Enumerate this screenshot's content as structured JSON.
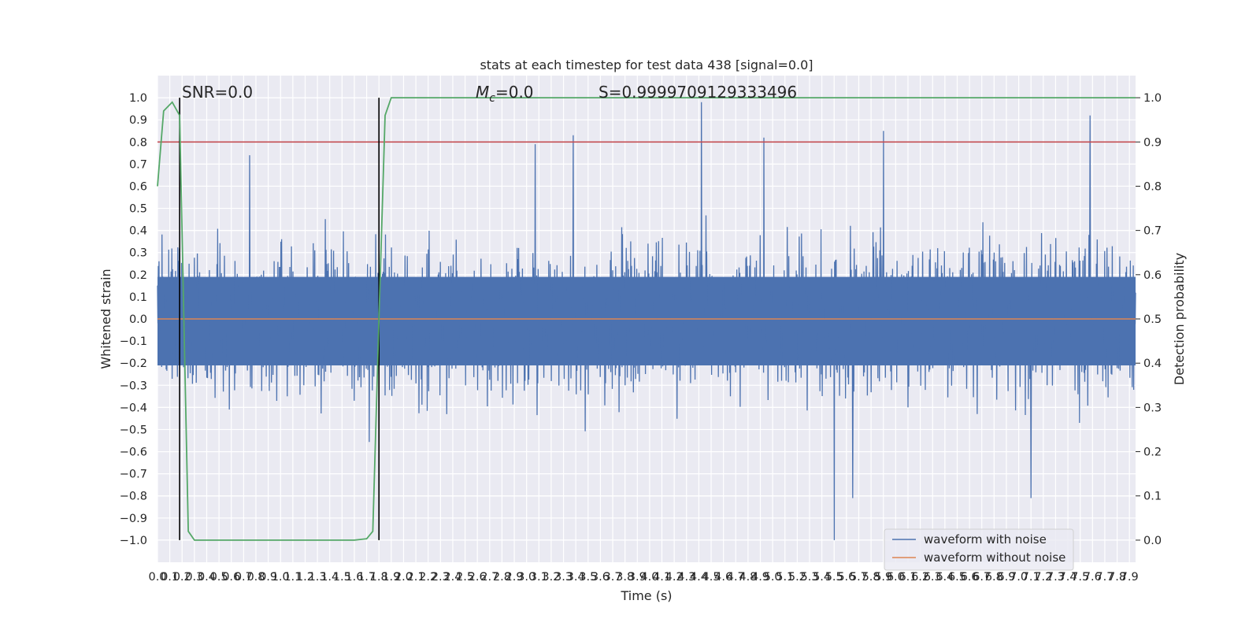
{
  "chart_data": {
    "type": "line",
    "title": "stats at each timestep for test data 438 [signal=0.0]",
    "xlabel": "Time (s)",
    "ylabel": "Whitened strain",
    "y2label": "Detection probability",
    "xlim": [
      0.0,
      7.95
    ],
    "ylim": [
      -1.1,
      1.1
    ],
    "y2lim": [
      -0.05,
      1.05
    ],
    "x_ticks": [
      "0.0",
      "0.1",
      "0.2",
      "0.3",
      "0.4",
      "0.5",
      "0.6",
      "0.7",
      "0.8",
      "0.9",
      "1.0",
      "1.1",
      "1.2",
      "1.3",
      "1.4",
      "1.5",
      "1.6",
      "1.7",
      "1.8",
      "1.9",
      "2.0",
      "2.1",
      "2.2",
      "2.3",
      "2.4",
      "2.5",
      "2.6",
      "2.7",
      "2.8",
      "2.9",
      "3.0",
      "3.1",
      "3.2",
      "3.3",
      "3.4",
      "3.5",
      "3.6",
      "3.7",
      "3.8",
      "3.9",
      "4.0",
      "4.1",
      "4.2",
      "4.3",
      "4.4",
      "4.5",
      "4.6",
      "4.7",
      "4.8",
      "4.9",
      "5.0",
      "5.1",
      "5.2",
      "5.3",
      "5.4",
      "5.5",
      "5.6",
      "5.7",
      "5.8",
      "5.9",
      "6.0",
      "6.1",
      "6.2",
      "6.3",
      "6.4",
      "6.5",
      "6.6",
      "6.7",
      "6.8",
      "6.9",
      "7.0",
      "7.1",
      "7.2",
      "7.3",
      "7.4",
      "7.5",
      "7.6",
      "7.7",
      "7.8",
      "7.9"
    ],
    "y_ticks": [
      "1.0",
      "0.9",
      "0.8",
      "0.7",
      "0.6",
      "0.5",
      "0.4",
      "0.3",
      "0.2",
      "0.1",
      "0.0",
      "-0.1",
      "-0.2",
      "-0.3",
      "-0.4",
      "-0.5",
      "-0.6",
      "-0.7",
      "-0.8",
      "-0.9",
      "-1.0"
    ],
    "y2_ticks": [
      "1.0",
      "0.9",
      "0.8",
      "0.7",
      "0.6",
      "0.5",
      "0.4",
      "0.3",
      "0.2",
      "0.1",
      "0.0"
    ],
    "annotations": {
      "snr": "SNR=0.0",
      "mc": "Mc=0.0",
      "s": "S=0.9999709129333496"
    },
    "threshold": 0.78,
    "vlines": [
      0.18,
      1.8
    ],
    "peaks": [
      [
        0.75,
        0.74
      ],
      [
        3.07,
        0.79
      ],
      [
        3.38,
        0.83
      ],
      [
        4.42,
        0.98
      ],
      [
        4.93,
        0.82
      ],
      [
        5.9,
        0.85
      ],
      [
        7.58,
        0.92
      ]
    ],
    "troughs": [
      [
        5.5,
        -1.0
      ],
      [
        5.65,
        -0.81
      ],
      [
        7.1,
        -0.81
      ]
    ],
    "series": [
      {
        "name": "waveform with noise",
        "color": "#4c72b0"
      },
      {
        "name": "waveform without noise",
        "color": "#dd8452",
        "value": 0.0
      },
      {
        "color": "#55a868",
        "x": [
          0.0,
          0.05,
          0.12,
          0.18,
          0.25,
          0.3,
          1.5,
          1.6,
          1.7,
          1.75,
          1.8,
          1.85,
          1.9,
          7.95
        ],
        "y": [
          0.8,
          0.97,
          0.99,
          0.96,
          0.02,
          0.0,
          0.0,
          0.0,
          0.003,
          0.02,
          0.5,
          0.96,
          1.0,
          1.0
        ]
      },
      {
        "color": "#c44e52",
        "value": 0.9
      }
    ],
    "legend": "lower-right"
  }
}
